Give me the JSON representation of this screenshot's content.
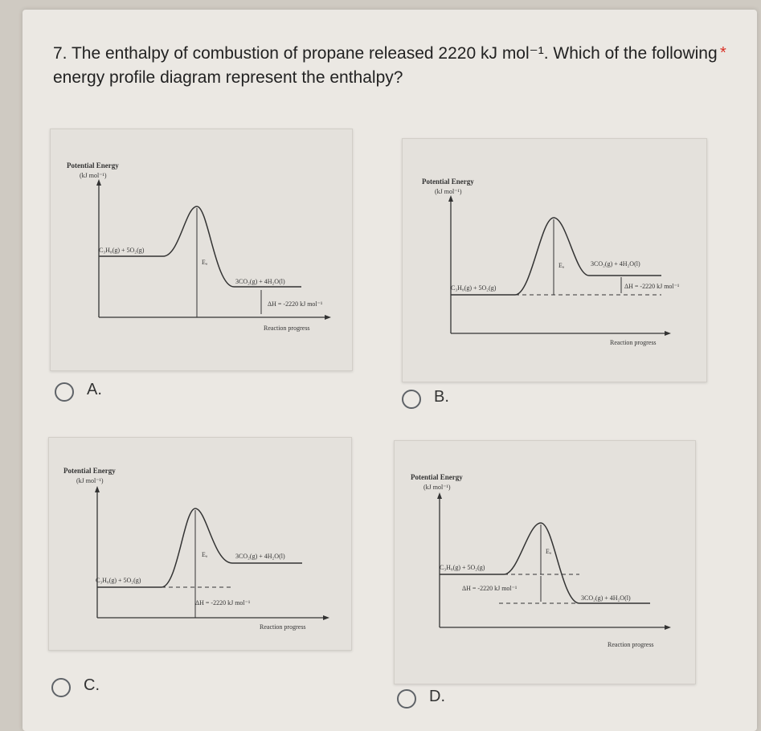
{
  "question": {
    "text": "7. The enthalpy of combustion of propane released 2220 kJ mol⁻¹. Which of the following energy profile diagram represent the enthalpy?",
    "required_marker": "*"
  },
  "options": [
    {
      "letter": "A."
    },
    {
      "letter": "B."
    },
    {
      "letter": "C."
    },
    {
      "letter": "D."
    }
  ],
  "diagram_labels": {
    "y_axis_line1": "Potential Energy",
    "y_axis_line2": "(kJ mol⁻¹)",
    "x_axis": "Reaction progress",
    "reactants": "C₃H₈(g) + 5O₂(g)",
    "products": "3CO₂(g) + 4H₂O(l)",
    "ea": "Eₐ",
    "delta_h": "ΔH = -2220 kJ mol⁻¹"
  },
  "colors": {
    "line": "#333333",
    "radio_border": "#5f6368",
    "required": "#d93025"
  }
}
